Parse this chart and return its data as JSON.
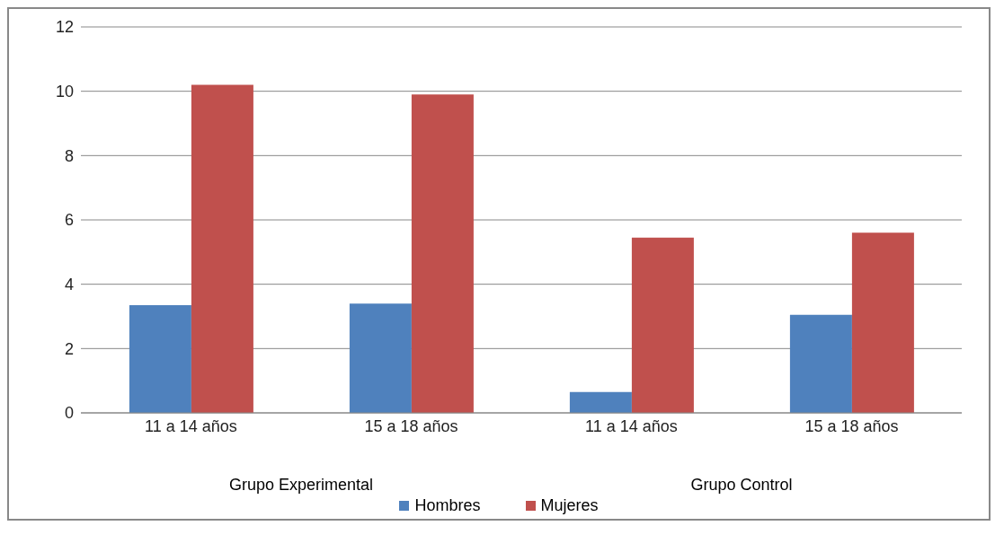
{
  "chart_data": {
    "type": "bar",
    "categories": [
      "11 a 14 años",
      "15 a 18 años",
      "11 a 14 años",
      "15 a 18 años"
    ],
    "series": [
      {
        "name": "Hombres",
        "color": "#4f81bd",
        "values": [
          3.35,
          3.4,
          0.65,
          3.05
        ]
      },
      {
        "name": "Mujeres",
        "color": "#c0504d",
        "values": [
          10.2,
          9.9,
          5.45,
          5.6
        ]
      }
    ],
    "annotations": [
      "Grupo Experimental",
      "Grupo Control"
    ],
    "ylim": [
      0,
      12
    ],
    "yticks": [
      0,
      2,
      4,
      6,
      8,
      10,
      12
    ],
    "grid": "y",
    "legend": "bottom"
  }
}
